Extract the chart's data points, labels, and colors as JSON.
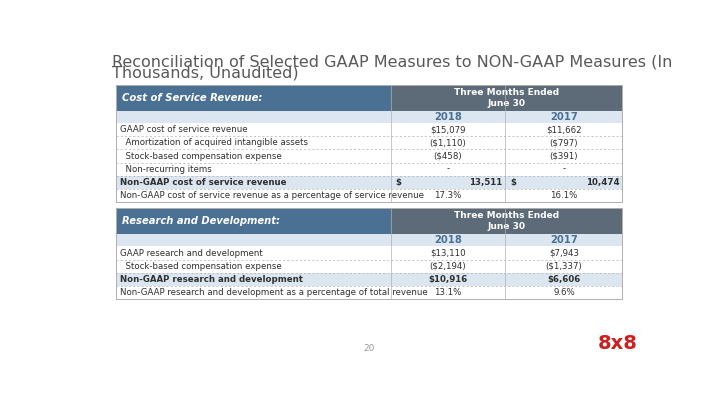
{
  "title_line1": "Reconciliation of Selected GAAP Measures to NON-GAAP Measures (In",
  "title_line2": "Thousands, Unaudited)",
  "title_fontsize": 11.5,
  "title_color": "#595959",
  "bg_color": "#ffffff",
  "header_dark": "#5d6b78",
  "header_blue": "#4a7094",
  "subheader_bg": "#dce6f1",
  "logo_color": "#cc1f1f",
  "page_num": "20",
  "col1_label": "Cost of Service Revenue:",
  "col_header": [
    "Three Months Ended",
    "June 30"
  ],
  "years": [
    "2018",
    "2017"
  ],
  "table1_rows": [
    [
      "GAAP cost of service revenue",
      "$15,079",
      "$11,662",
      false,
      false
    ],
    [
      "  Amortization of acquired intangible assets",
      "($1,110)",
      "($797)",
      false,
      false
    ],
    [
      "  Stock-based compensation expense",
      "($458)",
      "($391)",
      false,
      false
    ],
    [
      "  Non-recurring items",
      "-",
      "-",
      false,
      false
    ],
    [
      "Non-GAAP cost of service revenue",
      "13,511",
      "10,474",
      true,
      true
    ],
    [
      "Non-GAAP cost of service revenue as a percentage of service revenue",
      "17.3%",
      "16.1%",
      false,
      false
    ]
  ],
  "table2_label": "Research and Development:",
  "table2_rows": [
    [
      "GAAP research and development",
      "$13,110",
      "$7,943",
      false,
      false
    ],
    [
      "  Stock-based compensation expense",
      "($2,194)",
      "($1,337)",
      false,
      false
    ],
    [
      "Non-GAAP research and development",
      "$10,916",
      "$6,606",
      true,
      false
    ],
    [
      "Non-GAAP research and development as a percentage of total revenue",
      "13.1%",
      "9.6%",
      false,
      false
    ]
  ]
}
